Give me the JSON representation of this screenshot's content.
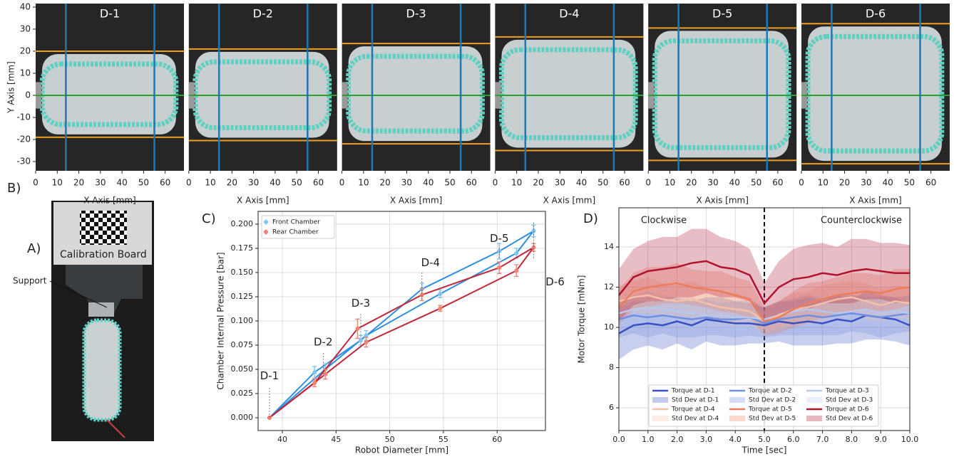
{
  "figure": {
    "panel_labels": [
      "A)",
      "B)",
      "C)",
      "D)"
    ],
    "photo_labels": [
      "Calibration Board",
      "Support"
    ]
  },
  "chart_data": [
    {
      "type": "photo",
      "title": "D-1",
      "xlabel": "X Axis [mm]",
      "ylabel": "Y Axis [mm]",
      "xlim": [
        0,
        68.7
      ],
      "ylim": [
        -34.2,
        41.6
      ],
      "xticks": [
        0,
        10,
        20,
        30,
        40,
        50,
        60
      ],
      "yticks": [
        -30,
        -20,
        -10,
        0,
        10,
        20,
        30,
        40
      ],
      "vlines": [
        14,
        55
      ],
      "vline_color": "#1f77b4",
      "centerline": 0,
      "centerline_color": "#2ca02c",
      "bounds": [
        20,
        -19
      ],
      "bounds_color": "#f0a020"
    },
    {
      "type": "photo",
      "title": "D-2",
      "xlabel": "X Axis [mm]",
      "xlim": [
        0,
        68.7
      ],
      "ylim": [
        -34.2,
        41.6
      ],
      "xticks": [
        0,
        10,
        20,
        30,
        40,
        50,
        60
      ],
      "vlines": [
        14,
        55
      ],
      "vline_color": "#1f77b4",
      "centerline": 0,
      "centerline_color": "#2ca02c",
      "bounds": [
        21,
        -20.5
      ],
      "bounds_color": "#f0a020"
    },
    {
      "type": "photo",
      "title": "D-3",
      "xlabel": "X Axis [mm]",
      "xlim": [
        0,
        68.7
      ],
      "ylim": [
        -34.2,
        41.6
      ],
      "xticks": [
        0,
        10,
        20,
        30,
        40,
        50,
        60
      ],
      "vlines": [
        14,
        55
      ],
      "vline_color": "#1f77b4",
      "centerline": 0,
      "centerline_color": "#2ca02c",
      "bounds": [
        23.5,
        -22
      ],
      "bounds_color": "#f0a020"
    },
    {
      "type": "photo",
      "title": "D-4",
      "xlabel": "X Axis [mm]",
      "xlim": [
        0,
        68.7
      ],
      "ylim": [
        -34.2,
        41.6
      ],
      "xticks": [
        0,
        10,
        20,
        30,
        40,
        50,
        60
      ],
      "vlines": [
        14,
        55
      ],
      "vline_color": "#1f77b4",
      "centerline": 0,
      "centerline_color": "#2ca02c",
      "bounds": [
        26.5,
        -25
      ],
      "bounds_color": "#f0a020"
    },
    {
      "type": "photo",
      "title": "D-5",
      "xlabel": "X Axis [mm]",
      "xlim": [
        0,
        68.7
      ],
      "ylim": [
        -34.2,
        41.6
      ],
      "xticks": [
        0,
        10,
        20,
        30,
        40,
        50,
        60
      ],
      "vlines": [
        14,
        55
      ],
      "vline_color": "#1f77b4",
      "centerline": 0,
      "centerline_color": "#2ca02c",
      "bounds": [
        30.5,
        -29.5
      ],
      "bounds_color": "#f0a020"
    },
    {
      "type": "photo",
      "title": "D-6",
      "xlabel": "X Axis [mm]",
      "xlim": [
        0,
        68.7
      ],
      "ylim": [
        -34.2,
        41.6
      ],
      "xticks": [
        0,
        10,
        20,
        30,
        40,
        50,
        60
      ],
      "vlines": [
        14,
        55
      ],
      "vline_color": "#1f77b4",
      "centerline": 0,
      "centerline_color": "#2ca02c",
      "bounds": [
        32.5,
        -31
      ],
      "bounds_color": "#f0a020"
    },
    {
      "type": "line",
      "xlabel": "Robot Diameter [mm]",
      "ylabel": "Chamber Internal Pressure [bar]",
      "xlim": [
        37.74,
        64.5
      ],
      "ylim": [
        -0.0132,
        0.2132
      ],
      "xticks": [
        40,
        45,
        50,
        55,
        60
      ],
      "yticks": [
        {
          "value": 0,
          "label": "0.000"
        },
        {
          "value": 0.025,
          "label": "0.025"
        },
        {
          "value": 0.05,
          "label": "0.050"
        },
        {
          "value": 0.075,
          "label": "0.075"
        },
        {
          "value": 0.1,
          "label": "0.100"
        },
        {
          "value": 0.125,
          "label": "0.125"
        },
        {
          "value": 0.15,
          "label": "0.150"
        },
        {
          "value": 0.175,
          "label": "0.175"
        },
        {
          "value": 0.2,
          "label": "0.200"
        }
      ],
      "grid": true,
      "legend": "upper left",
      "annotations": [
        "D-1",
        "D-2",
        "D-3",
        "D-4",
        "D-5",
        "D-6"
      ],
      "series": [
        {
          "name": "Front Chamber",
          "color": "#2e8ee0",
          "marker_color": "#80c4f2",
          "x": [
            38.8,
            43.0,
            47.3,
            53.0,
            60.2,
            63.4,
            61.8,
            54.7,
            47.8,
            44.0,
            38.8
          ],
          "values": [
            0,
            0.047,
            0.08,
            0.133,
            0.172,
            0.193,
            0.17,
            0.128,
            0.085,
            0.05,
            0
          ],
          "errors": [
            0,
            0.006,
            0.005,
            0.006,
            0.008,
            0.006,
            0.005,
            0.004,
            0.005,
            0.006,
            0
          ]
        },
        {
          "name": "Rear Chamber",
          "color": "#c0283a",
          "marker_color": "#f08070",
          "x": [
            38.8,
            43.0,
            47.0,
            53.0,
            60.2,
            63.4,
            61.8,
            54.7,
            47.8,
            44.0,
            38.8
          ],
          "values": [
            0,
            0.036,
            0.092,
            0.127,
            0.155,
            0.176,
            0.152,
            0.113,
            0.078,
            0.045,
            0
          ],
          "errors": [
            0,
            0.004,
            0.01,
            0.006,
            0.006,
            0.004,
            0.006,
            0.003,
            0.005,
            0.005,
            0
          ]
        }
      ]
    },
    {
      "type": "line",
      "xlabel": "Time [sec]",
      "ylabel": "Motor Torque [mNm]",
      "xlim": [
        0,
        10
      ],
      "ylim": [
        4.87,
        15.95
      ],
      "xticks": [
        {
          "value": 0,
          "label": "0.0"
        },
        {
          "value": 1,
          "label": "1.0"
        },
        {
          "value": 2,
          "label": "2.0"
        },
        {
          "value": 3,
          "label": "3.0"
        },
        {
          "value": 4,
          "label": "4.0"
        },
        {
          "value": 5,
          "label": "5.0"
        },
        {
          "value": 6,
          "label": "6.0"
        },
        {
          "value": 7,
          "label": "7.0"
        },
        {
          "value": 8,
          "label": "8.0"
        },
        {
          "value": 9,
          "label": "9.0"
        },
        {
          "value": 10,
          "label": "10.0"
        }
      ],
      "yticks": [
        6,
        8,
        10,
        12,
        14
      ],
      "grid": true,
      "legend": "lower center",
      "divider": 5,
      "annotations": [
        "Clockwise",
        "Counterclockwise"
      ],
      "x": [
        0,
        0.5,
        1,
        1.5,
        2,
        2.5,
        3,
        3.5,
        4,
        4.5,
        5,
        5.5,
        6,
        6.5,
        7,
        7.5,
        8,
        8.5,
        9,
        9.5,
        10
      ],
      "series": [
        {
          "name": "Torque at D-1",
          "std_name": "Std Dev at D-1",
          "color": "#3a4fc0",
          "values": [
            9.7,
            10.1,
            10.2,
            10.1,
            10.3,
            10.1,
            10.4,
            10.3,
            10.2,
            10.2,
            10.1,
            10.3,
            10.2,
            10.3,
            10.2,
            10.4,
            10.3,
            10.6,
            10.5,
            10.4,
            10.1
          ],
          "std": [
            1.3,
            1.2,
            1.1,
            1.2,
            1.1,
            1.2,
            1.1,
            1.2,
            1.1,
            1.0,
            0.9,
            1.0,
            1.1,
            1.2,
            1.1,
            1.2,
            1.1,
            1.2,
            1.1,
            1.1,
            1.0
          ]
        },
        {
          "name": "Torque at D-2",
          "std_name": "Std Dev at D-2",
          "color": "#6f8fe0",
          "values": [
            10.4,
            10.6,
            10.5,
            10.6,
            10.5,
            10.4,
            10.5,
            10.4,
            10.4,
            10.5,
            10.2,
            10.4,
            10.5,
            10.6,
            10.5,
            10.6,
            10.7,
            10.6,
            10.5,
            10.6,
            10.7
          ],
          "std": [
            0.9,
            0.9,
            1.0,
            0.9,
            1.0,
            0.9,
            0.9,
            0.8,
            0.9,
            0.9,
            0.7,
            0.8,
            0.9,
            1.0,
            0.9,
            1.0,
            0.9,
            0.9,
            1.0,
            0.9,
            0.9
          ]
        },
        {
          "name": "Torque at D-3",
          "std_name": "Std Dev at D-3",
          "color": "#b8c8ec",
          "values": [
            10.7,
            10.9,
            11.0,
            10.9,
            10.8,
            10.7,
            10.6,
            10.6,
            10.5,
            10.5,
            10.4,
            10.6,
            10.8,
            10.9,
            10.8,
            10.7,
            10.8,
            10.9,
            10.7,
            10.8,
            10.7
          ],
          "std": [
            0.7,
            0.7,
            0.8,
            0.7,
            0.7,
            0.8,
            0.7,
            0.7,
            0.7,
            0.6,
            0.6,
            0.7,
            0.7,
            0.8,
            0.7,
            0.7,
            0.8,
            0.7,
            0.7,
            0.7,
            0.7
          ]
        },
        {
          "name": "Torque at D-4",
          "std_name": "Std Dev at D-4",
          "color": "#f4c0a8",
          "values": [
            11.3,
            11.5,
            11.6,
            11.4,
            11.3,
            11.4,
            11.2,
            11.0,
            10.9,
            10.8,
            10.3,
            10.6,
            10.9,
            11.0,
            11.2,
            11.4,
            11.5,
            11.3,
            11.1,
            11.3,
            11.2
          ],
          "std": [
            0.8,
            0.8,
            0.9,
            0.8,
            0.8,
            0.9,
            0.8,
            0.8,
            0.8,
            0.7,
            0.6,
            0.7,
            0.8,
            0.8,
            0.9,
            0.8,
            0.8,
            0.9,
            0.8,
            0.8,
            0.8
          ]
        },
        {
          "name": "Torque at D-5",
          "std_name": "Std Dev at D-5",
          "color": "#ec7d5c",
          "values": [
            11.0,
            11.8,
            12.0,
            12.1,
            12.2,
            12.0,
            11.9,
            11.8,
            11.6,
            11.4,
            10.3,
            10.5,
            10.9,
            11.2,
            11.4,
            11.6,
            11.7,
            11.8,
            11.7,
            11.9,
            12.0
          ],
          "std": [
            0.9,
            0.9,
            1.0,
            0.9,
            1.0,
            0.9,
            0.9,
            1.0,
            0.9,
            0.9,
            0.7,
            0.8,
            0.9,
            1.0,
            0.9,
            0.9,
            1.0,
            0.9,
            0.9,
            1.0,
            0.9
          ]
        },
        {
          "name": "Torque at D-6",
          "std_name": "Std Dev at D-6",
          "color": "#b0132e",
          "values": [
            11.6,
            12.5,
            12.8,
            12.9,
            13.0,
            13.2,
            13.3,
            13.0,
            12.9,
            12.6,
            11.2,
            12.0,
            12.4,
            12.5,
            12.7,
            12.6,
            12.8,
            12.9,
            12.8,
            12.7,
            12.7
          ],
          "std": [
            1.3,
            1.4,
            1.5,
            1.6,
            1.5,
            1.7,
            1.6,
            1.5,
            1.4,
            1.3,
            1.0,
            1.3,
            1.5,
            1.6,
            1.5,
            1.4,
            1.6,
            1.5,
            1.4,
            1.5,
            1.4
          ]
        }
      ]
    }
  ]
}
